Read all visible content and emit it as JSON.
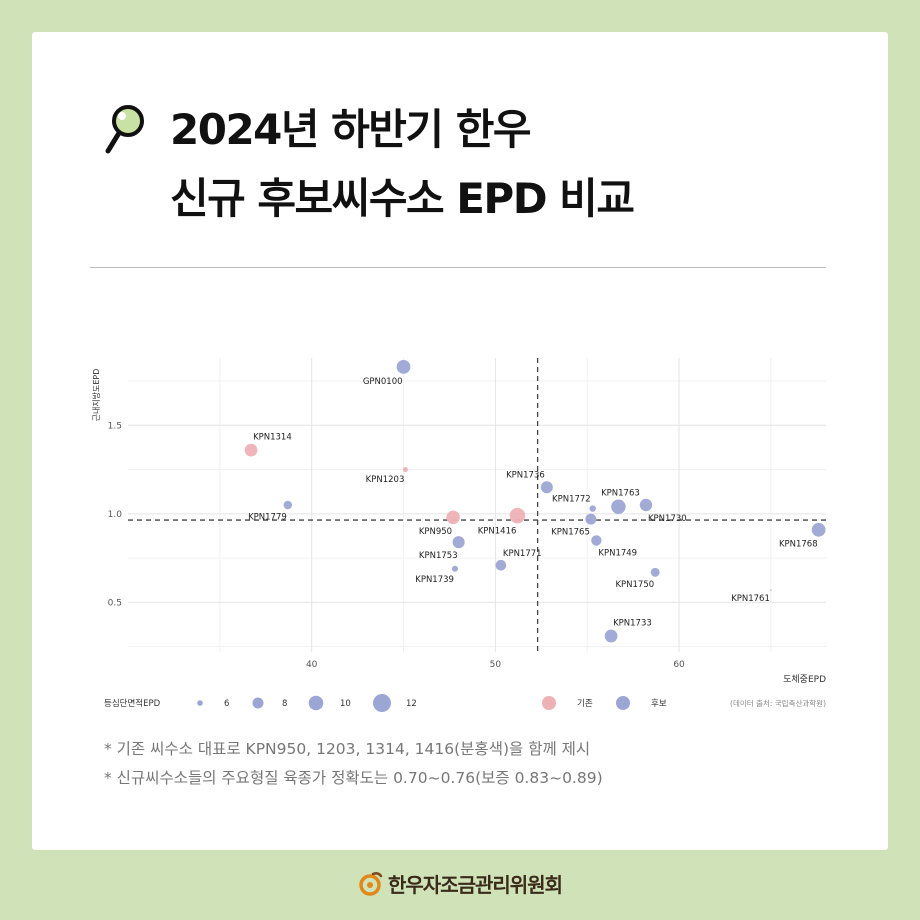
{
  "header": {
    "title_line1": "2024년 하반기 한우",
    "title_line2": "신규 후보씨수소 EPD 비교"
  },
  "colors": {
    "background": "#cfe2b8",
    "existing": "#eeb1b6",
    "candidate": "#9ca6d4"
  },
  "icons": {
    "title": "magnifier-icon",
    "footer": "hanwoo-logo-icon"
  },
  "chart_data": {
    "type": "scatter",
    "xlabel": "도체중EPD",
    "ylabel": "근내지방도EPD",
    "xlim": [
      30,
      68
    ],
    "ylim": [
      0.22,
      1.88
    ],
    "xticks": [
      40,
      50,
      60
    ],
    "yticks": [
      0.5,
      1.0,
      1.5
    ],
    "xtick_labels": [
      "40",
      "50",
      "60"
    ],
    "ytick_labels": [
      "0.5",
      "1.0",
      "1.5"
    ],
    "grid": true,
    "reference_lines": {
      "x": 52.3,
      "y": 0.965
    },
    "size_legend": {
      "title": "등심단면적EPD",
      "values": [
        6,
        8,
        10,
        12
      ]
    },
    "size_range": [
      4,
      12
    ],
    "color_legend": {
      "items": [
        {
          "label": "기존",
          "group": "existing"
        },
        {
          "label": "후보",
          "group": "candidate"
        }
      ]
    },
    "source": "(데이터 출처: 국립축산과학원)",
    "points": [
      {
        "label": "GPN0100",
        "x": 45.0,
        "y": 1.83,
        "size": 9.6,
        "group": "candidate",
        "label_pos": "below-left"
      },
      {
        "label": "KPN1314",
        "x": 36.7,
        "y": 1.36,
        "size": 9.0,
        "group": "existing",
        "label_pos": "above-right"
      },
      {
        "label": "KPN1203",
        "x": 45.1,
        "y": 1.25,
        "size": 4.6,
        "group": "existing",
        "label_pos": "below-left"
      },
      {
        "label": "KPN1779",
        "x": 38.7,
        "y": 1.05,
        "size": 6.6,
        "group": "candidate",
        "label_pos": "below-left"
      },
      {
        "label": "KPN950",
        "x": 47.7,
        "y": 0.98,
        "size": 9.4,
        "group": "existing",
        "label_pos": "below-left"
      },
      {
        "label": "KPN1416",
        "x": 51.2,
        "y": 0.99,
        "size": 10.6,
        "group": "existing",
        "label_pos": "below-left"
      },
      {
        "label": "KPN1753",
        "x": 48.0,
        "y": 0.84,
        "size": 8.6,
        "group": "candidate",
        "label_pos": "below-left"
      },
      {
        "label": "KPN1739",
        "x": 47.8,
        "y": 0.69,
        "size": 5.2,
        "group": "candidate",
        "label_pos": "below-left"
      },
      {
        "label": "KPN1771",
        "x": 50.3,
        "y": 0.71,
        "size": 7.8,
        "group": "candidate",
        "label_pos": "above-right"
      },
      {
        "label": "KPN1736",
        "x": 52.8,
        "y": 1.15,
        "size": 8.6,
        "group": "candidate",
        "label_pos": "above-left"
      },
      {
        "label": "KPN1772",
        "x": 55.3,
        "y": 1.03,
        "size": 5.4,
        "group": "candidate",
        "label_pos": "above-left"
      },
      {
        "label": "KPN1765",
        "x": 55.2,
        "y": 0.97,
        "size": 8.0,
        "group": "candidate",
        "label_pos": "below-left"
      },
      {
        "label": "KPN1763",
        "x": 56.7,
        "y": 1.04,
        "size": 10.0,
        "group": "candidate",
        "label_pos": "above"
      },
      {
        "label": "KPN1730",
        "x": 58.2,
        "y": 1.05,
        "size": 8.8,
        "group": "candidate",
        "label_pos": "below-right"
      },
      {
        "label": "KPN1749",
        "x": 55.5,
        "y": 0.85,
        "size": 7.6,
        "group": "candidate",
        "label_pos": "below-right"
      },
      {
        "label": "KPN1750",
        "x": 58.7,
        "y": 0.67,
        "size": 6.8,
        "group": "candidate",
        "label_pos": "below-left"
      },
      {
        "label": "KPN1768",
        "x": 67.6,
        "y": 0.91,
        "size": 9.6,
        "group": "candidate",
        "label_pos": "below-left"
      },
      {
        "label": "KPN1761",
        "x": 65.0,
        "y": 0.57,
        "size": 2.6,
        "group": "candidate",
        "label_pos": "below-left"
      },
      {
        "label": "KPN1733",
        "x": 56.3,
        "y": 0.31,
        "size": 9.0,
        "group": "candidate",
        "label_pos": "above-right"
      }
    ]
  },
  "notes": [
    "* 기존 씨수소 대표로 KPN950, 1203, 1314, 1416(분홍색)을 함께 제시",
    "* 신규씨수소들의 주요형질 육종가 정확도는 0.70~0.76(보증 0.83~0.89)"
  ],
  "footer": {
    "org_name": "한우자조금관리위원회"
  }
}
